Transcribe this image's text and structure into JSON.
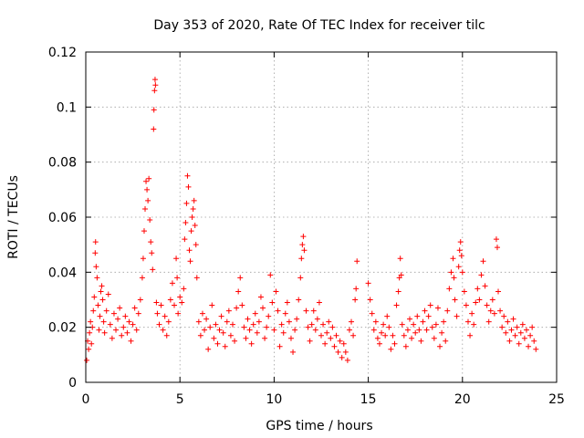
{
  "chart_data": {
    "type": "scatter",
    "title": "Day 353 of 2020, Rate Of TEC Index for receiver tilc",
    "xlabel": "GPS time / hours",
    "ylabel": "ROTI / TECUs",
    "xlim": [
      0,
      25
    ],
    "ylim": [
      0,
      0.12
    ],
    "x_ticks": [
      0,
      5,
      10,
      15,
      20,
      25
    ],
    "x_tick_labels": [
      "0",
      "5",
      "10",
      "15",
      "20",
      "25"
    ],
    "y_ticks": [
      0,
      0.02,
      0.04,
      0.06,
      0.08,
      0.1,
      0.12
    ],
    "y_tick_labels": [
      "0",
      "0.02",
      "0.04",
      "0.06",
      "0.08",
      "0.1",
      "0.12"
    ],
    "grid": true,
    "marker": "+",
    "color": "#ff0000",
    "series": [
      {
        "name": "ROTI",
        "points": [
          [
            0.05,
            0.008
          ],
          [
            0.1,
            0.015
          ],
          [
            0.15,
            0.012
          ],
          [
            0.2,
            0.018
          ],
          [
            0.25,
            0.022
          ],
          [
            0.3,
            0.014
          ],
          [
            0.35,
            0.02
          ],
          [
            0.4,
            0.026
          ],
          [
            0.45,
            0.031
          ],
          [
            0.5,
            0.047
          ],
          [
            0.52,
            0.051
          ],
          [
            0.55,
            0.042
          ],
          [
            0.6,
            0.038
          ],
          [
            0.65,
            0.028
          ],
          [
            0.7,
            0.019
          ],
          [
            0.75,
            0.024
          ],
          [
            0.8,
            0.033
          ],
          [
            0.85,
            0.035
          ],
          [
            0.9,
            0.03
          ],
          [
            0.95,
            0.022
          ],
          [
            1.0,
            0.018
          ],
          [
            1.1,
            0.026
          ],
          [
            1.2,
            0.032
          ],
          [
            1.3,
            0.021
          ],
          [
            1.4,
            0.016
          ],
          [
            1.5,
            0.025
          ],
          [
            1.6,
            0.019
          ],
          [
            1.7,
            0.023
          ],
          [
            1.8,
            0.027
          ],
          [
            1.9,
            0.017
          ],
          [
            2.0,
            0.02
          ],
          [
            2.1,
            0.024
          ],
          [
            2.2,
            0.018
          ],
          [
            2.3,
            0.022
          ],
          [
            2.4,
            0.015
          ],
          [
            2.5,
            0.021
          ],
          [
            2.6,
            0.027
          ],
          [
            2.7,
            0.019
          ],
          [
            2.8,
            0.025
          ],
          [
            2.9,
            0.03
          ],
          [
            3.0,
            0.038
          ],
          [
            3.05,
            0.045
          ],
          [
            3.1,
            0.055
          ],
          [
            3.15,
            0.063
          ],
          [
            3.2,
            0.073
          ],
          [
            3.25,
            0.07
          ],
          [
            3.3,
            0.066
          ],
          [
            3.35,
            0.074
          ],
          [
            3.4,
            0.059
          ],
          [
            3.45,
            0.051
          ],
          [
            3.5,
            0.047
          ],
          [
            3.55,
            0.041
          ],
          [
            3.6,
            0.092
          ],
          [
            3.62,
            0.099
          ],
          [
            3.65,
            0.106
          ],
          [
            3.68,
            0.11
          ],
          [
            3.7,
            0.108
          ],
          [
            3.75,
            0.029
          ],
          [
            3.8,
            0.025
          ],
          [
            3.9,
            0.021
          ],
          [
            4.0,
            0.028
          ],
          [
            4.1,
            0.019
          ],
          [
            4.2,
            0.024
          ],
          [
            4.3,
            0.017
          ],
          [
            4.4,
            0.022
          ],
          [
            4.5,
            0.03
          ],
          [
            4.6,
            0.036
          ],
          [
            4.7,
            0.028
          ],
          [
            4.8,
            0.045
          ],
          [
            4.85,
            0.038
          ],
          [
            4.9,
            0.025
          ],
          [
            5.0,
            0.031
          ],
          [
            5.1,
            0.029
          ],
          [
            5.2,
            0.034
          ],
          [
            5.25,
            0.052
          ],
          [
            5.3,
            0.058
          ],
          [
            5.35,
            0.065
          ],
          [
            5.4,
            0.075
          ],
          [
            5.45,
            0.071
          ],
          [
            5.5,
            0.048
          ],
          [
            5.55,
            0.044
          ],
          [
            5.6,
            0.055
          ],
          [
            5.65,
            0.06
          ],
          [
            5.7,
            0.063
          ],
          [
            5.75,
            0.066
          ],
          [
            5.8,
            0.057
          ],
          [
            5.85,
            0.05
          ],
          [
            5.9,
            0.038
          ],
          [
            6.0,
            0.022
          ],
          [
            6.1,
            0.017
          ],
          [
            6.2,
            0.025
          ],
          [
            6.3,
            0.019
          ],
          [
            6.4,
            0.023
          ],
          [
            6.5,
            0.012
          ],
          [
            6.6,
            0.02
          ],
          [
            6.7,
            0.028
          ],
          [
            6.8,
            0.016
          ],
          [
            6.9,
            0.021
          ],
          [
            7.0,
            0.014
          ],
          [
            7.1,
            0.019
          ],
          [
            7.2,
            0.024
          ],
          [
            7.3,
            0.018
          ],
          [
            7.4,
            0.013
          ],
          [
            7.5,
            0.022
          ],
          [
            7.6,
            0.026
          ],
          [
            7.7,
            0.017
          ],
          [
            7.8,
            0.021
          ],
          [
            7.9,
            0.015
          ],
          [
            8.0,
            0.027
          ],
          [
            8.1,
            0.033
          ],
          [
            8.2,
            0.038
          ],
          [
            8.3,
            0.028
          ],
          [
            8.4,
            0.02
          ],
          [
            8.5,
            0.016
          ],
          [
            8.6,
            0.023
          ],
          [
            8.7,
            0.019
          ],
          [
            8.8,
            0.014
          ],
          [
            8.9,
            0.021
          ],
          [
            9.0,
            0.025
          ],
          [
            9.1,
            0.018
          ],
          [
            9.2,
            0.022
          ],
          [
            9.3,
            0.031
          ],
          [
            9.4,
            0.027
          ],
          [
            9.5,
            0.016
          ],
          [
            9.6,
            0.02
          ],
          [
            9.7,
            0.024
          ],
          [
            9.8,
            0.039
          ],
          [
            9.9,
            0.029
          ],
          [
            10.0,
            0.019
          ],
          [
            10.1,
            0.033
          ],
          [
            10.2,
            0.026
          ],
          [
            10.3,
            0.013
          ],
          [
            10.4,
            0.021
          ],
          [
            10.5,
            0.018
          ],
          [
            10.6,
            0.025
          ],
          [
            10.7,
            0.029
          ],
          [
            10.8,
            0.022
          ],
          [
            10.9,
            0.016
          ],
          [
            11.0,
            0.011
          ],
          [
            11.1,
            0.019
          ],
          [
            11.2,
            0.023
          ],
          [
            11.3,
            0.03
          ],
          [
            11.4,
            0.038
          ],
          [
            11.45,
            0.045
          ],
          [
            11.5,
            0.05
          ],
          [
            11.55,
            0.053
          ],
          [
            11.6,
            0.048
          ],
          [
            11.7,
            0.026
          ],
          [
            11.8,
            0.02
          ],
          [
            11.9,
            0.015
          ],
          [
            12.0,
            0.021
          ],
          [
            12.1,
            0.026
          ],
          [
            12.2,
            0.019
          ],
          [
            12.3,
            0.023
          ],
          [
            12.4,
            0.029
          ],
          [
            12.5,
            0.017
          ],
          [
            12.6,
            0.021
          ],
          [
            12.7,
            0.014
          ],
          [
            12.8,
            0.018
          ],
          [
            12.9,
            0.022
          ],
          [
            13.0,
            0.016
          ],
          [
            13.1,
            0.02
          ],
          [
            13.2,
            0.013
          ],
          [
            13.3,
            0.017
          ],
          [
            13.4,
            0.011
          ],
          [
            13.5,
            0.015
          ],
          [
            13.6,
            0.009
          ],
          [
            13.7,
            0.014
          ],
          [
            13.8,
            0.011
          ],
          [
            13.9,
            0.008
          ],
          [
            14.0,
            0.019
          ],
          [
            14.1,
            0.022
          ],
          [
            14.2,
            0.017
          ],
          [
            14.3,
            0.03
          ],
          [
            14.35,
            0.034
          ],
          [
            14.4,
            0.044
          ],
          [
            15.0,
            0.036
          ],
          [
            15.1,
            0.03
          ],
          [
            15.2,
            0.025
          ],
          [
            15.3,
            0.019
          ],
          [
            15.4,
            0.022
          ],
          [
            15.5,
            0.016
          ],
          [
            15.6,
            0.014
          ],
          [
            15.7,
            0.018
          ],
          [
            15.8,
            0.021
          ],
          [
            15.9,
            0.017
          ],
          [
            16.0,
            0.024
          ],
          [
            16.1,
            0.02
          ],
          [
            16.2,
            0.012
          ],
          [
            16.3,
            0.017
          ],
          [
            16.4,
            0.014
          ],
          [
            16.5,
            0.028
          ],
          [
            16.6,
            0.033
          ],
          [
            16.65,
            0.038
          ],
          [
            16.7,
            0.045
          ],
          [
            16.75,
            0.039
          ],
          [
            16.8,
            0.021
          ],
          [
            16.9,
            0.017
          ],
          [
            17.0,
            0.013
          ],
          [
            17.1,
            0.019
          ],
          [
            17.2,
            0.023
          ],
          [
            17.3,
            0.016
          ],
          [
            17.4,
            0.021
          ],
          [
            17.5,
            0.018
          ],
          [
            17.6,
            0.024
          ],
          [
            17.7,
            0.019
          ],
          [
            17.8,
            0.015
          ],
          [
            17.9,
            0.022
          ],
          [
            18.0,
            0.026
          ],
          [
            18.1,
            0.019
          ],
          [
            18.2,
            0.024
          ],
          [
            18.3,
            0.028
          ],
          [
            18.4,
            0.02
          ],
          [
            18.5,
            0.016
          ],
          [
            18.6,
            0.021
          ],
          [
            18.7,
            0.027
          ],
          [
            18.8,
            0.013
          ],
          [
            18.9,
            0.018
          ],
          [
            19.0,
            0.022
          ],
          [
            19.1,
            0.015
          ],
          [
            19.2,
            0.026
          ],
          [
            19.3,
            0.034
          ],
          [
            19.4,
            0.04
          ],
          [
            19.5,
            0.045
          ],
          [
            19.55,
            0.038
          ],
          [
            19.6,
            0.03
          ],
          [
            19.7,
            0.024
          ],
          [
            19.8,
            0.042
          ],
          [
            19.85,
            0.048
          ],
          [
            19.9,
            0.051
          ],
          [
            19.95,
            0.046
          ],
          [
            20.0,
            0.04
          ],
          [
            20.1,
            0.033
          ],
          [
            20.2,
            0.028
          ],
          [
            20.3,
            0.022
          ],
          [
            20.4,
            0.017
          ],
          [
            20.5,
            0.025
          ],
          [
            20.6,
            0.021
          ],
          [
            20.7,
            0.029
          ],
          [
            20.8,
            0.034
          ],
          [
            20.9,
            0.03
          ],
          [
            21.0,
            0.039
          ],
          [
            21.1,
            0.044
          ],
          [
            21.2,
            0.035
          ],
          [
            21.3,
            0.028
          ],
          [
            21.4,
            0.022
          ],
          [
            21.5,
            0.026
          ],
          [
            21.6,
            0.03
          ],
          [
            21.7,
            0.025
          ],
          [
            21.8,
            0.052
          ],
          [
            21.85,
            0.049
          ],
          [
            21.9,
            0.033
          ],
          [
            22.0,
            0.026
          ],
          [
            22.1,
            0.02
          ],
          [
            22.2,
            0.024
          ],
          [
            22.3,
            0.018
          ],
          [
            22.4,
            0.022
          ],
          [
            22.5,
            0.015
          ],
          [
            22.6,
            0.019
          ],
          [
            22.7,
            0.023
          ],
          [
            22.8,
            0.017
          ],
          [
            22.9,
            0.02
          ],
          [
            23.0,
            0.014
          ],
          [
            23.1,
            0.018
          ],
          [
            23.2,
            0.021
          ],
          [
            23.3,
            0.016
          ],
          [
            23.4,
            0.019
          ],
          [
            23.5,
            0.013
          ],
          [
            23.6,
            0.017
          ],
          [
            23.7,
            0.02
          ],
          [
            23.8,
            0.015
          ],
          [
            23.9,
            0.012
          ]
        ]
      }
    ]
  }
}
